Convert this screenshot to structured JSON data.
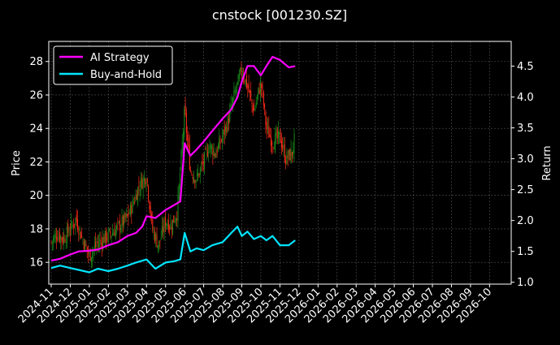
{
  "chart_data": {
    "type": "line",
    "title": "cnstock [001230.SZ]",
    "ylabel_left": "Price",
    "ylabel_right": "Return",
    "y_left_lim": [
      14.7,
      29.2
    ],
    "y_right_lim": [
      0.97,
      4.9
    ],
    "y_left_ticks": [
      "16",
      "18",
      "20",
      "22",
      "24",
      "26",
      "28"
    ],
    "y_right_ticks": [
      "1.0",
      "1.5",
      "2.0",
      "2.5",
      "3.0",
      "3.5",
      "4.0",
      "4.5"
    ],
    "x_ticks": [
      "2024-11",
      "2024-12",
      "2025-01",
      "2025-02",
      "2025-03",
      "2025-04",
      "2025-05",
      "2025-06",
      "2025-07",
      "2025-08",
      "2025-09",
      "2025-10",
      "2025-11",
      "2025-12",
      "2026-01",
      "2026-02",
      "2026-03",
      "2026-04",
      "2026-05",
      "2026-06",
      "2026-07",
      "2026-08",
      "2026-09",
      "2026-10"
    ],
    "grid": true,
    "legend_position": "top-left",
    "colors": {
      "up": "#1a8c1a",
      "down": "#ff2a1a",
      "strategy": "#ff00ff",
      "buyhold": "#00e5ff",
      "grid": "#555555"
    },
    "series": [
      {
        "name": "AI Strategy",
        "axis": "right",
        "x": [
          "2024-11-01",
          "2024-11-15",
          "2024-12-01",
          "2024-12-15",
          "2025-01-01",
          "2025-01-15",
          "2025-02-01",
          "2025-02-15",
          "2025-03-01",
          "2025-03-15",
          "2025-03-25",
          "2025-04-01",
          "2025-04-15",
          "2025-05-01",
          "2025-05-15",
          "2025-05-25",
          "2025-06-01",
          "2025-06-10",
          "2025-06-20",
          "2025-07-01",
          "2025-07-15",
          "2025-08-01",
          "2025-08-15",
          "2025-08-25",
          "2025-09-01",
          "2025-09-10",
          "2025-09-20",
          "2025-10-01",
          "2025-10-10",
          "2025-10-20",
          "2025-11-01",
          "2025-11-15",
          "2025-11-25"
        ],
        "values": [
          1.35,
          1.38,
          1.45,
          1.5,
          1.51,
          1.53,
          1.6,
          1.65,
          1.75,
          1.8,
          1.9,
          2.07,
          2.04,
          2.17,
          2.25,
          2.31,
          3.25,
          3.05,
          3.15,
          3.28,
          3.45,
          3.65,
          3.8,
          4.0,
          4.25,
          4.5,
          4.5,
          4.35,
          4.5,
          4.65,
          4.6,
          4.48,
          4.5
        ]
      },
      {
        "name": "Buy-and-Hold",
        "axis": "right",
        "x": [
          "2024-11-01",
          "2024-11-15",
          "2024-12-01",
          "2024-12-15",
          "2025-01-01",
          "2025-01-15",
          "2025-02-01",
          "2025-02-15",
          "2025-03-01",
          "2025-03-15",
          "2025-04-01",
          "2025-04-15",
          "2025-05-01",
          "2025-05-15",
          "2025-05-25",
          "2025-06-01",
          "2025-06-10",
          "2025-06-20",
          "2025-07-01",
          "2025-07-15",
          "2025-08-01",
          "2025-08-15",
          "2025-08-25",
          "2025-09-01",
          "2025-09-10",
          "2025-09-20",
          "2025-10-01",
          "2025-10-10",
          "2025-10-20",
          "2025-11-01",
          "2025-11-15",
          "2025-11-25"
        ],
        "values": [
          1.23,
          1.27,
          1.23,
          1.2,
          1.16,
          1.22,
          1.18,
          1.22,
          1.27,
          1.32,
          1.37,
          1.22,
          1.32,
          1.34,
          1.37,
          1.8,
          1.5,
          1.55,
          1.52,
          1.6,
          1.65,
          1.8,
          1.9,
          1.75,
          1.82,
          1.7,
          1.75,
          1.68,
          1.75,
          1.6,
          1.6,
          1.68
        ]
      },
      {
        "name": "Price",
        "axis": "left",
        "x": [
          "2024-11-01",
          "2024-11-10",
          "2024-11-20",
          "2024-12-01",
          "2024-12-10",
          "2024-12-20",
          "2025-01-01",
          "2025-01-10",
          "2025-01-20",
          "2025-02-01",
          "2025-02-10",
          "2025-02-20",
          "2025-03-01",
          "2025-03-10",
          "2025-03-20",
          "2025-04-01",
          "2025-04-10",
          "2025-04-20",
          "2025-05-01",
          "2025-05-10",
          "2025-05-20",
          "2025-06-01",
          "2025-06-10",
          "2025-06-20",
          "2025-07-01",
          "2025-07-10",
          "2025-07-20",
          "2025-08-01",
          "2025-08-10",
          "2025-08-20",
          "2025-09-01",
          "2025-09-10",
          "2025-09-20",
          "2025-10-01",
          "2025-10-10",
          "2025-10-20",
          "2025-11-01",
          "2025-11-10",
          "2025-11-20",
          "2025-11-25"
        ],
        "values": [
          17.2,
          17.7,
          17.4,
          18.0,
          18.6,
          17.5,
          16.4,
          16.9,
          17.3,
          17.6,
          17.9,
          18.3,
          18.7,
          19.5,
          20.6,
          21.2,
          18.0,
          17.0,
          18.5,
          18.2,
          19.0,
          25.0,
          21.5,
          21.0,
          22.0,
          23.0,
          22.5,
          23.5,
          24.5,
          26.0,
          27.5,
          26.5,
          25.0,
          26.8,
          24.0,
          23.2,
          23.5,
          22.2,
          22.5,
          23.6
        ]
      }
    ]
  }
}
